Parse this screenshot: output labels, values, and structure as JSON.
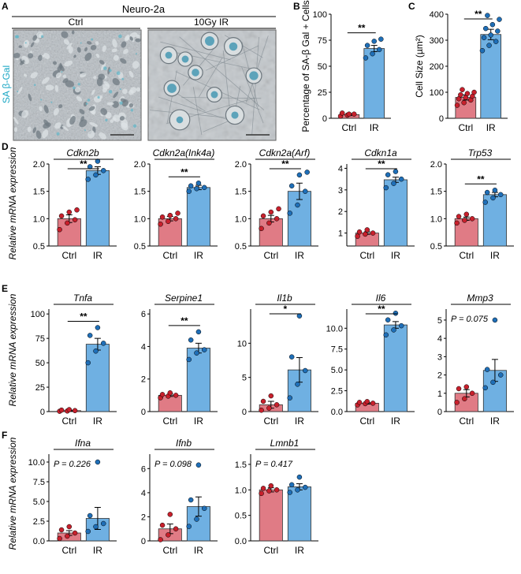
{
  "colors": {
    "ctrl": "#e07b85",
    "ir": "#6fb0e2",
    "ctrl_dot": "#c8202c",
    "ir_dot": "#1f6fb8",
    "sa_label": "#19a6c4",
    "micro_bg": "#b9c0c6"
  },
  "panel_labels": [
    "A",
    "B",
    "C",
    "D",
    "E",
    "F"
  ],
  "panel_a": {
    "group_title": "Neuro-2a",
    "conditions": [
      "Ctrl",
      "10Gy IR"
    ],
    "stain_label": "SA β-Gal"
  },
  "row_ylabels": {
    "D": "Relative mRNA expression",
    "E": "Relative mRNA expression",
    "F": "Relative mRNA expression"
  },
  "chart_data": [
    {
      "id": "B",
      "type": "bar",
      "title": "",
      "categories": [
        "Ctrl",
        "IR"
      ],
      "values": [
        3.5,
        67
      ],
      "errors": [
        1.0,
        3.0
      ],
      "points": [
        [
          2,
          3,
          4,
          5,
          4
        ],
        [
          58,
          62,
          66,
          70,
          74,
          76
        ]
      ],
      "ylabel": "Percentage of SA-β Gal + Cells",
      "ylim": [
        0,
        100
      ],
      "yticks": [
        0,
        25,
        50,
        75,
        100
      ],
      "sig": "**"
    },
    {
      "id": "C",
      "type": "bar",
      "title": "",
      "categories": [
        "Ctrl",
        "IR"
      ],
      "values": [
        80,
        322
      ],
      "errors": [
        10,
        20
      ],
      "points": [
        [
          50,
          60,
          70,
          75,
          80,
          85,
          90,
          95,
          100,
          110
        ],
        [
          260,
          280,
          295,
          310,
          320,
          335,
          345,
          360,
          380,
          395
        ]
      ],
      "ylabel": "Cell Size (µm²)",
      "ylim": [
        0,
        400
      ],
      "yticks": [
        0,
        100,
        200,
        300,
        400
      ],
      "sig": "**"
    },
    {
      "id": "D1",
      "type": "bar",
      "title": "Cdkn2b",
      "categories": [
        "Ctrl",
        "IR"
      ],
      "values": [
        1.0,
        1.88
      ],
      "errors": [
        0.07,
        0.07
      ],
      "points": [
        [
          0.8,
          0.92,
          0.98,
          1.05,
          1.12,
          1.16
        ],
        [
          1.72,
          1.8,
          1.88,
          1.95,
          2.05
        ]
      ],
      "ylim": [
        0.5,
        2.0
      ],
      "yticks": [
        0.5,
        1.0,
        1.5,
        2.0
      ],
      "sig": "**"
    },
    {
      "id": "D2",
      "type": "bar",
      "title": "Cdkn2a(Ink4a)",
      "categories": [
        "Ctrl",
        "IR"
      ],
      "values": [
        1.0,
        1.57
      ],
      "errors": [
        0.04,
        0.04
      ],
      "points": [
        [
          0.9,
          0.95,
          1.0,
          1.03,
          1.06,
          1.1
        ],
        [
          1.5,
          1.55,
          1.57,
          1.6,
          1.65
        ]
      ],
      "ylim": [
        0.5,
        2.0
      ],
      "yticks": [
        0.5,
        1.0,
        1.5,
        2.0
      ],
      "sig": "**"
    },
    {
      "id": "D3",
      "type": "bar",
      "title": "Cdkn2a(Arf)",
      "categories": [
        "Ctrl",
        "IR"
      ],
      "values": [
        1.0,
        1.5
      ],
      "errors": [
        0.06,
        0.15
      ],
      "points": [
        [
          0.82,
          0.92,
          1.0,
          1.05,
          1.12,
          1.18
        ],
        [
          1.1,
          1.25,
          1.5,
          1.6,
          1.8,
          1.85
        ]
      ],
      "ylim": [
        0.5,
        2.0
      ],
      "yticks": [
        0.5,
        1.0,
        1.5,
        2.0
      ],
      "sig": "**"
    },
    {
      "id": "D4",
      "type": "bar",
      "title": "Cdkn1a",
      "categories": [
        "Ctrl",
        "IR"
      ],
      "values": [
        1.0,
        3.47
      ],
      "errors": [
        0.06,
        0.12
      ],
      "points": [
        [
          0.85,
          0.95,
          1.0,
          1.05,
          1.15
        ],
        [
          3.1,
          3.3,
          3.5,
          3.7,
          3.85
        ]
      ],
      "ylim": [
        0.4,
        4.2
      ],
      "yticks": [
        1,
        2,
        3,
        4
      ],
      "sig": "**"
    },
    {
      "id": "D5",
      "type": "bar",
      "title": "Trp53",
      "categories": [
        "Ctrl",
        "IR"
      ],
      "values": [
        1.0,
        1.44
      ],
      "errors": [
        0.03,
        0.04
      ],
      "points": [
        [
          0.92,
          0.97,
          1.0,
          1.04,
          1.08
        ],
        [
          1.3,
          1.38,
          1.44,
          1.48,
          1.52
        ]
      ],
      "ylim": [
        0.5,
        2.0
      ],
      "yticks": [
        0.5,
        1.0,
        1.5,
        2.0
      ],
      "sig": "**"
    },
    {
      "id": "E1",
      "type": "bar",
      "title": "Tnfa",
      "categories": [
        "Ctrl",
        "IR"
      ],
      "values": [
        1.0,
        69
      ],
      "errors": [
        0.5,
        6
      ],
      "points": [
        [
          0.3,
          0.6,
          1.0,
          1.5,
          2.0
        ],
        [
          50,
          62,
          70,
          78,
          86
        ]
      ],
      "ylim": [
        0,
        105
      ],
      "yticks": [
        0,
        25,
        50,
        75,
        100
      ],
      "sig": "**"
    },
    {
      "id": "E2",
      "type": "bar",
      "title": "Serpine1",
      "categories": [
        "Ctrl",
        "IR"
      ],
      "values": [
        1.0,
        3.9
      ],
      "errors": [
        0.07,
        0.3
      ],
      "points": [
        [
          0.85,
          0.95,
          1.0,
          1.05,
          1.15
        ],
        [
          3.2,
          3.6,
          3.8,
          4.4,
          4.9
        ]
      ],
      "ylim": [
        0,
        6.3
      ],
      "yticks": [
        0,
        2,
        4,
        6
      ],
      "sig": "**"
    },
    {
      "id": "E3",
      "type": "bar",
      "title": "Il1b",
      "categories": [
        "Ctrl",
        "IR"
      ],
      "values": [
        1.0,
        6.1
      ],
      "errors": [
        0.5,
        1.8
      ],
      "points": [
        [
          0.2,
          0.5,
          1.0,
          1.5,
          2.3
        ],
        [
          2.0,
          4.0,
          6.0,
          8.0,
          14.0
        ]
      ],
      "ylim": [
        0,
        15
      ],
      "yticks": [
        0,
        5,
        10
      ],
      "sig": "*"
    },
    {
      "id": "E4",
      "type": "bar",
      "title": "Il6",
      "categories": [
        "Ctrl",
        "IR"
      ],
      "values": [
        1.0,
        10.4
      ],
      "errors": [
        0.1,
        0.4
      ],
      "points": [
        [
          0.8,
          0.95,
          1.0,
          1.1,
          1.2
        ],
        [
          9.2,
          9.8,
          10.3,
          11.0,
          11.8
        ]
      ],
      "ylim": [
        0,
        12.3
      ],
      "yticks": [
        0,
        2.5,
        5.0,
        7.5,
        10.0
      ],
      "sig": "**"
    },
    {
      "id": "E5",
      "type": "bar",
      "title": "Mmp3",
      "categories": [
        "Ctrl",
        "IR"
      ],
      "values": [
        1.0,
        2.25
      ],
      "errors": [
        0.2,
        0.6
      ],
      "points": [
        [
          0.5,
          0.7,
          1.0,
          1.25,
          1.35
        ],
        [
          1.3,
          1.6,
          2.0,
          2.3,
          5.0
        ]
      ],
      "ylim": [
        0,
        5.6
      ],
      "yticks": [
        0,
        1,
        2,
        3,
        4,
        5
      ],
      "pval": "P = 0.075"
    },
    {
      "id": "F1",
      "type": "bar",
      "title": "Ifna",
      "categories": [
        "Ctrl",
        "IR"
      ],
      "values": [
        1.0,
        2.85
      ],
      "errors": [
        0.3,
        1.4
      ],
      "points": [
        [
          0.3,
          0.6,
          1.0,
          1.4,
          1.8
        ],
        [
          1.2,
          1.8,
          2.2,
          3.2,
          10.0
        ]
      ],
      "ylim": [
        0,
        11
      ],
      "yticks": [
        0,
        2.5,
        5.0,
        7.5,
        10.0
      ],
      "pval": "P = 0.226"
    },
    {
      "id": "F2",
      "type": "bar",
      "title": "Ifnb",
      "categories": [
        "Ctrl",
        "IR"
      ],
      "values": [
        1.0,
        2.85
      ],
      "errors": [
        0.4,
        0.8
      ],
      "points": [
        [
          0.1,
          0.5,
          1.0,
          1.3,
          2.2
        ],
        [
          1.2,
          1.8,
          2.7,
          3.4,
          6.3
        ]
      ],
      "ylim": [
        0,
        7.2
      ],
      "yticks": [
        0,
        2,
        4,
        6
      ],
      "pval": "P = 0.098"
    },
    {
      "id": "F3",
      "type": "bar",
      "title": "Lmnb1",
      "categories": [
        "Ctrl",
        "IR"
      ],
      "values": [
        1.0,
        1.06
      ],
      "errors": [
        0.04,
        0.06
      ],
      "points": [
        [
          0.93,
          0.98,
          1.0,
          1.03,
          1.08
        ],
        [
          0.95,
          1.0,
          1.05,
          1.1,
          1.25
        ]
      ],
      "ylim": [
        0,
        1.7
      ],
      "yticks": [
        0,
        0.5,
        1.0,
        1.5
      ],
      "pval": "P = 0.417"
    }
  ]
}
